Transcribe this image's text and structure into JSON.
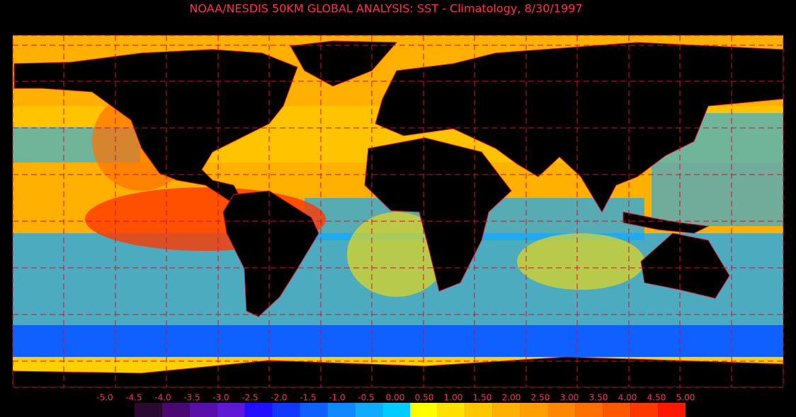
{
  "title": "NOAA/NESDIS 50KM GLOBAL ANALYSIS: SST - Climatology, 8/30/1997",
  "colorbar": {
    "ticks": [
      {
        "value": -5.0,
        "label": "-5.0"
      },
      {
        "value": -4.5,
        "label": "-4.5"
      },
      {
        "value": -4.0,
        "label": "-4.0"
      },
      {
        "value": -3.5,
        "label": "-3.5"
      },
      {
        "value": -3.0,
        "label": "-3.0"
      },
      {
        "value": -2.5,
        "label": "-2.5"
      },
      {
        "value": -2.0,
        "label": "-2.0"
      },
      {
        "value": -1.5,
        "label": "-1.5"
      },
      {
        "value": -1.0,
        "label": "-1.0"
      },
      {
        "value": -0.5,
        "label": "-0.5"
      },
      {
        "value": 0,
        "label": "0.00"
      },
      {
        "value": 0.5,
        "label": "0.50"
      },
      {
        "value": 1,
        "label": "1.00"
      },
      {
        "value": 1.5,
        "label": "1.50"
      },
      {
        "value": 2,
        "label": "2.00"
      },
      {
        "value": 2.5,
        "label": "2.50"
      },
      {
        "value": 3,
        "label": "3.00"
      },
      {
        "value": 3.5,
        "label": "3.50"
      },
      {
        "value": 4,
        "label": "4.00"
      },
      {
        "value": 4.5,
        "label": "4.50"
      },
      {
        "value": 5,
        "label": "5.00"
      }
    ],
    "colors": [
      "#2a0a30",
      "#4a0870",
      "#5a10a8",
      "#6018d8",
      "#2010ff",
      "#1038ff",
      "#1060ff",
      "#1088ff",
      "#10aaff",
      "#00ccff",
      "#ffff00",
      "#ffe000",
      "#ffc800",
      "#ffb000",
      "#ffa000",
      "#ff8800",
      "#ff7000",
      "#ff5800",
      "#ff3800",
      "#ff1800"
    ]
  }
}
